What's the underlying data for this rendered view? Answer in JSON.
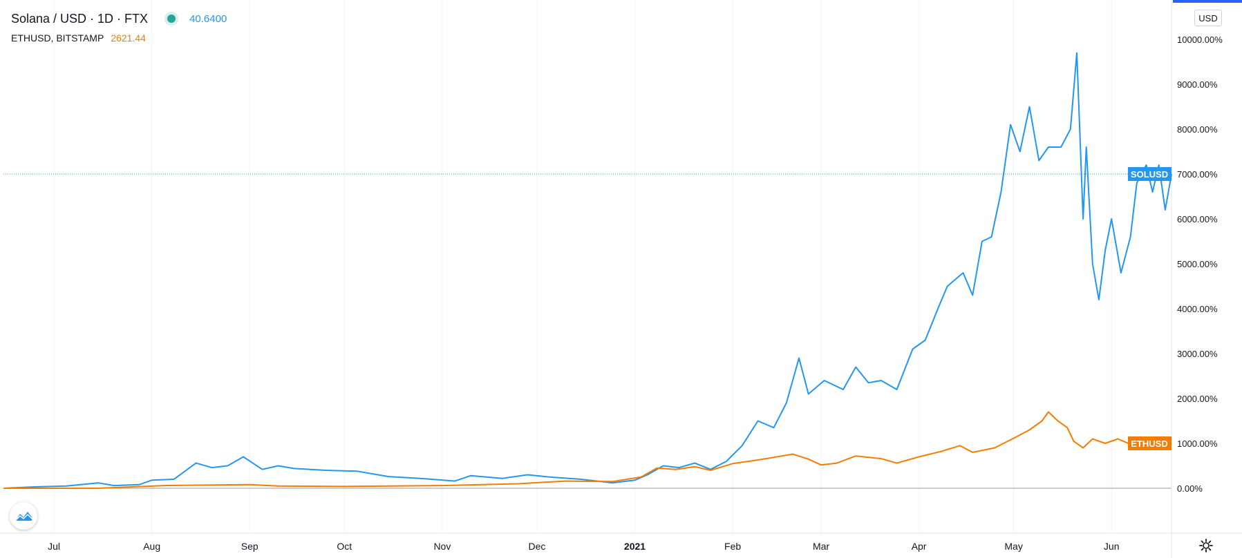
{
  "legend": {
    "title": "Solana / USD · 1D · FTX",
    "sol_value": "40.6400",
    "eth_name": "ETHUSD, BITSTAMP",
    "eth_value": "2621.44"
  },
  "scale_button": "USD",
  "icons": {
    "logo": "tradingview-logo-icon",
    "settings": "gear-icon"
  },
  "colors": {
    "sol": "#2196f3",
    "eth": "#f57c00"
  },
  "chart_data": {
    "type": "line",
    "title": "",
    "ylabel": "",
    "ylim": [
      -1000,
      10800
    ],
    "y_ticks": [
      0,
      1000,
      2000,
      3000,
      4000,
      5000,
      6000,
      7000,
      8000,
      9000,
      10000
    ],
    "y_tick_labels": [
      "0.00%",
      "1000.00%",
      "2000.00%",
      "3000.00%",
      "4000.00%",
      "5000.00%",
      "6000.00%",
      "7000.00%",
      "8000.00%",
      "9000.00%",
      "10000.00%"
    ],
    "x_tick_labels": [
      {
        "label": "Jul",
        "x": "2020-07-01"
      },
      {
        "label": "Aug",
        "x": "2020-08-01"
      },
      {
        "label": "Sep",
        "x": "2020-09-01"
      },
      {
        "label": "Oct",
        "x": "2020-10-01"
      },
      {
        "label": "Nov",
        "x": "2020-11-01"
      },
      {
        "label": "Dec",
        "x": "2020-12-01"
      },
      {
        "label": "2021",
        "x": "2021-01-01"
      },
      {
        "label": "Feb",
        "x": "2021-02-01"
      },
      {
        "label": "Mar",
        "x": "2021-03-01"
      },
      {
        "label": "Apr",
        "x": "2021-04-01"
      },
      {
        "label": "May",
        "x": "2021-05-01"
      },
      {
        "label": "Jun",
        "x": "2021-06-01"
      }
    ],
    "x_range": [
      "2020-06-15",
      "2021-06-20"
    ],
    "grid": "vertical",
    "crosshair_y": 7000,
    "series": [
      {
        "name": "SOLUSD",
        "color": "#2196f3",
        "last_label": "SOLUSD",
        "points": [
          [
            "2020-06-15",
            0
          ],
          [
            "2020-06-25",
            30
          ],
          [
            "2020-07-05",
            50
          ],
          [
            "2020-07-15",
            120
          ],
          [
            "2020-07-20",
            60
          ],
          [
            "2020-07-28",
            80
          ],
          [
            "2020-08-01",
            180
          ],
          [
            "2020-08-08",
            200
          ],
          [
            "2020-08-15",
            560
          ],
          [
            "2020-08-20",
            460
          ],
          [
            "2020-08-25",
            500
          ],
          [
            "2020-08-30",
            700
          ],
          [
            "2020-09-05",
            420
          ],
          [
            "2020-09-10",
            500
          ],
          [
            "2020-09-15",
            440
          ],
          [
            "2020-09-25",
            400
          ],
          [
            "2020-10-05",
            380
          ],
          [
            "2020-10-15",
            260
          ],
          [
            "2020-10-25",
            220
          ],
          [
            "2020-11-05",
            160
          ],
          [
            "2020-11-10",
            280
          ],
          [
            "2020-11-20",
            220
          ],
          [
            "2020-11-28",
            300
          ],
          [
            "2020-12-05",
            250
          ],
          [
            "2020-12-15",
            200
          ],
          [
            "2020-12-25",
            120
          ],
          [
            "2021-01-01",
            180
          ],
          [
            "2021-01-05",
            300
          ],
          [
            "2021-01-10",
            500
          ],
          [
            "2021-01-15",
            460
          ],
          [
            "2021-01-20",
            560
          ],
          [
            "2021-01-25",
            420
          ],
          [
            "2021-01-30",
            600
          ],
          [
            "2021-02-04",
            950
          ],
          [
            "2021-02-09",
            1500
          ],
          [
            "2021-02-14",
            1350
          ],
          [
            "2021-02-18",
            1900
          ],
          [
            "2021-02-22",
            2900
          ],
          [
            "2021-02-25",
            2100
          ],
          [
            "2021-03-02",
            2400
          ],
          [
            "2021-03-08",
            2200
          ],
          [
            "2021-03-12",
            2700
          ],
          [
            "2021-03-16",
            2350
          ],
          [
            "2021-03-20",
            2400
          ],
          [
            "2021-03-25",
            2200
          ],
          [
            "2021-03-30",
            3100
          ],
          [
            "2021-04-03",
            3300
          ],
          [
            "2021-04-07",
            4000
          ],
          [
            "2021-04-10",
            4500
          ],
          [
            "2021-04-15",
            4800
          ],
          [
            "2021-04-18",
            4300
          ],
          [
            "2021-04-21",
            5500
          ],
          [
            "2021-04-24",
            5600
          ],
          [
            "2021-04-27",
            6600
          ],
          [
            "2021-04-30",
            8100
          ],
          [
            "2021-05-03",
            7500
          ],
          [
            "2021-05-06",
            8500
          ],
          [
            "2021-05-09",
            7300
          ],
          [
            "2021-05-12",
            7600
          ],
          [
            "2021-05-16",
            7600
          ],
          [
            "2021-05-19",
            8000
          ],
          [
            "2021-05-21",
            9700
          ],
          [
            "2021-05-23",
            6000
          ],
          [
            "2021-05-24",
            7600
          ],
          [
            "2021-05-26",
            5000
          ],
          [
            "2021-05-28",
            4200
          ],
          [
            "2021-05-30",
            5300
          ],
          [
            "2021-06-01",
            6000
          ],
          [
            "2021-06-04",
            4800
          ],
          [
            "2021-06-07",
            5600
          ],
          [
            "2021-06-09",
            6800
          ],
          [
            "2021-06-12",
            7200
          ],
          [
            "2021-06-14",
            6600
          ],
          [
            "2021-06-16",
            7200
          ],
          [
            "2021-06-18",
            6200
          ],
          [
            "2021-06-20",
            7000
          ]
        ]
      },
      {
        "name": "ETHUSD",
        "color": "#f57c00",
        "last_label": "ETHUSD",
        "points": [
          [
            "2020-06-15",
            0
          ],
          [
            "2020-07-15",
            0
          ],
          [
            "2020-08-05",
            60
          ],
          [
            "2020-09-01",
            80
          ],
          [
            "2020-09-10",
            50
          ],
          [
            "2020-10-01",
            40
          ],
          [
            "2020-11-01",
            60
          ],
          [
            "2020-11-25",
            100
          ],
          [
            "2020-12-10",
            160
          ],
          [
            "2020-12-25",
            150
          ],
          [
            "2021-01-03",
            250
          ],
          [
            "2021-01-08",
            450
          ],
          [
            "2021-01-14",
            420
          ],
          [
            "2021-01-20",
            480
          ],
          [
            "2021-01-25",
            400
          ],
          [
            "2021-02-01",
            550
          ],
          [
            "2021-02-08",
            620
          ],
          [
            "2021-02-15",
            700
          ],
          [
            "2021-02-20",
            760
          ],
          [
            "2021-02-25",
            650
          ],
          [
            "2021-03-01",
            520
          ],
          [
            "2021-03-06",
            560
          ],
          [
            "2021-03-12",
            720
          ],
          [
            "2021-03-20",
            660
          ],
          [
            "2021-03-25",
            560
          ],
          [
            "2021-04-01",
            700
          ],
          [
            "2021-04-08",
            820
          ],
          [
            "2021-04-14",
            950
          ],
          [
            "2021-04-18",
            800
          ],
          [
            "2021-04-25",
            900
          ],
          [
            "2021-05-02",
            1150
          ],
          [
            "2021-05-06",
            1300
          ],
          [
            "2021-05-10",
            1500
          ],
          [
            "2021-05-12",
            1700
          ],
          [
            "2021-05-15",
            1500
          ],
          [
            "2021-05-18",
            1350
          ],
          [
            "2021-05-20",
            1050
          ],
          [
            "2021-05-23",
            900
          ],
          [
            "2021-05-26",
            1100
          ],
          [
            "2021-05-30",
            1000
          ],
          [
            "2021-06-03",
            1100
          ],
          [
            "2021-06-08",
            950
          ],
          [
            "2021-06-12",
            1050
          ],
          [
            "2021-06-16",
            1100
          ],
          [
            "2021-06-20",
            1000
          ]
        ]
      }
    ]
  }
}
